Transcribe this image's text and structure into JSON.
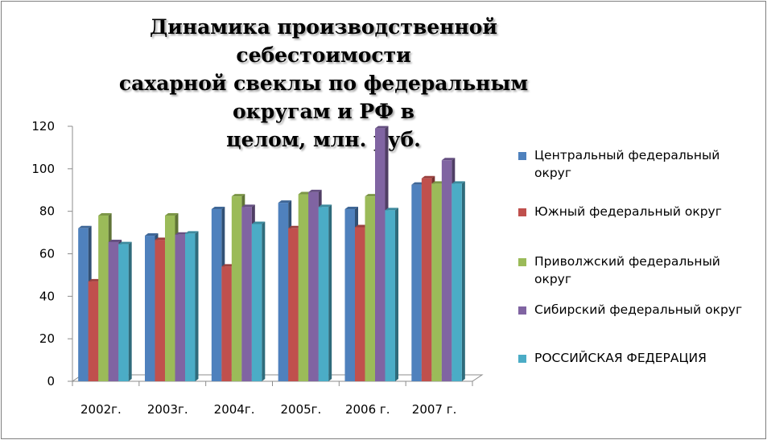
{
  "chart_data": {
    "type": "bar",
    "title_lines": [
      "Динамика производственной себестоимости",
      "сахарной свеклы по федеральным округам и РФ в",
      "целом, млн. руб."
    ],
    "categories": [
      "2002г.",
      "2003г.",
      "2004г.",
      "2005г.",
      "2006 г.",
      "2007 г."
    ],
    "y_ticks": [
      "0",
      "20",
      "40",
      "60",
      "80",
      "100",
      "120"
    ],
    "ylim": [
      0,
      120
    ],
    "grid": false,
    "legend_position": "right",
    "series": [
      {
        "name": "Центральный федеральный округ",
        "color": "#4f81bd",
        "values": [
          72,
          68.5,
          81,
          84,
          81,
          92.5
        ]
      },
      {
        "name": "Южный федеральный округ",
        "color": "#c0504d",
        "values": [
          47,
          66.5,
          54,
          72,
          72.5,
          95.5
        ]
      },
      {
        "name": "Приволжский федеральный округ",
        "color": "#9bbb59",
        "values": [
          78,
          78,
          87,
          88,
          87,
          93
        ]
      },
      {
        "name": "Сибирский федеральный округ",
        "color": "#8064a2",
        "values": [
          65.5,
          69,
          82,
          89,
          119,
          104
        ]
      },
      {
        "name": "РОССИЙСКАЯ  ФЕДЕРАЦИЯ",
        "color": "#4bacc6",
        "values": [
          64.5,
          69.5,
          74,
          82,
          80.5,
          93
        ]
      }
    ]
  }
}
